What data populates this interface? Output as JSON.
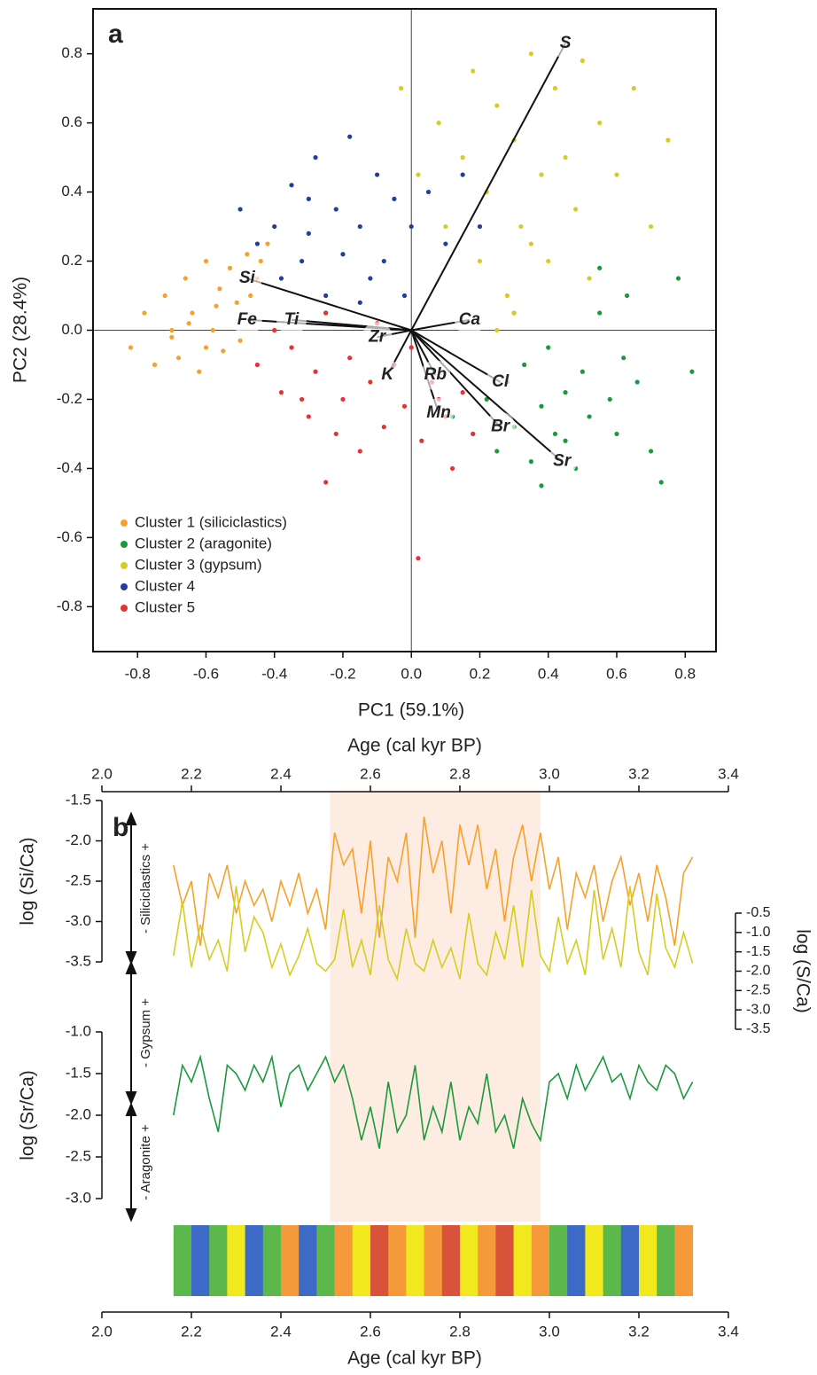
{
  "chart_data": [
    {
      "type": "scatter",
      "panel": "a",
      "xlabel": "PC1 (59.1%)",
      "ylabel": "PC2 (28.4%)",
      "xlim": [
        -0.93,
        0.89
      ],
      "ylim": [
        -0.93,
        0.93
      ],
      "xticks": [
        -0.8,
        -0.6,
        -0.4,
        -0.2,
        {
          "value": 0,
          "label": "0.0"
        },
        0.2,
        0.4,
        0.6,
        0.8
      ],
      "yticks": [
        -0.8,
        -0.6,
        -0.4,
        -0.2,
        {
          "value": 0,
          "label": "0.0"
        },
        0.2,
        0.4,
        0.6,
        0.8
      ],
      "legend": "lower-left",
      "series": [
        {
          "name": "Cluster 1 (siliciclastics)",
          "color": "#f7a12a",
          "x": [
            -0.82,
            -0.78,
            -0.75,
            -0.72,
            -0.7,
            -0.68,
            -0.66,
            -0.64,
            -0.62,
            -0.6,
            -0.58,
            -0.56,
            -0.55,
            -0.53,
            -0.51,
            -0.5,
            -0.48,
            -0.47,
            -0.45,
            -0.44,
            -0.42,
            -0.6,
            -0.65,
            -0.7,
            -0.57
          ],
          "y": [
            -0.05,
            0.05,
            -0.1,
            0.1,
            0.0,
            -0.08,
            0.15,
            0.05,
            -0.12,
            0.2,
            0.0,
            0.12,
            -0.06,
            0.18,
            0.08,
            -0.03,
            0.22,
            0.1,
            0.15,
            0.2,
            0.25,
            -0.05,
            0.02,
            -0.02,
            0.07
          ]
        },
        {
          "name": "Cluster 2 (aragonite)",
          "color": "#1a9a3a",
          "x": [
            0.12,
            0.18,
            0.22,
            0.25,
            0.28,
            0.3,
            0.33,
            0.35,
            0.38,
            0.4,
            0.42,
            0.45,
            0.48,
            0.5,
            0.52,
            0.55,
            0.58,
            0.6,
            0.63,
            0.66,
            0.7,
            0.73,
            0.78,
            0.82,
            0.45,
            0.38,
            0.3,
            0.55,
            0.62
          ],
          "y": [
            -0.25,
            -0.3,
            -0.2,
            -0.35,
            -0.15,
            -0.28,
            -0.1,
            -0.38,
            -0.22,
            -0.05,
            -0.3,
            -0.18,
            -0.4,
            -0.12,
            -0.25,
            0.05,
            -0.2,
            -0.3,
            0.1,
            -0.15,
            -0.35,
            -0.44,
            0.15,
            -0.12,
            -0.32,
            -0.45,
            0.05,
            0.18,
            -0.08
          ]
        },
        {
          "name": "Cluster 3 (gypsum)",
          "color": "#d6cd22",
          "x": [
            -0.03,
            0.02,
            0.08,
            0.1,
            0.15,
            0.18,
            0.2,
            0.22,
            0.25,
            0.28,
            0.3,
            0.32,
            0.35,
            0.38,
            0.4,
            0.42,
            0.45,
            0.48,
            0.5,
            0.52,
            0.55,
            0.6,
            0.65,
            0.7,
            0.75,
            0.3,
            0.25,
            0.35
          ],
          "y": [
            0.7,
            0.45,
            0.6,
            0.3,
            0.5,
            0.75,
            0.2,
            0.4,
            0.65,
            0.1,
            0.55,
            0.3,
            0.8,
            0.45,
            0.2,
            0.7,
            0.5,
            0.35,
            0.78,
            0.15,
            0.6,
            0.45,
            0.7,
            0.3,
            0.55,
            0.05,
            0.0,
            0.25
          ]
        },
        {
          "name": "Cluster 4",
          "color": "#1f3f99",
          "x": [
            -0.5,
            -0.45,
            -0.4,
            -0.38,
            -0.35,
            -0.32,
            -0.3,
            -0.28,
            -0.25,
            -0.22,
            -0.2,
            -0.18,
            -0.15,
            -0.12,
            -0.1,
            -0.08,
            -0.05,
            -0.02,
            0.0,
            0.05,
            0.1,
            0.15,
            0.2,
            -0.25,
            -0.15,
            -0.3
          ],
          "y": [
            0.35,
            0.25,
            0.3,
            0.15,
            0.42,
            0.2,
            0.28,
            0.5,
            0.1,
            0.35,
            0.22,
            0.56,
            0.3,
            0.15,
            0.45,
            0.2,
            0.38,
            0.1,
            0.3,
            0.4,
            0.25,
            0.45,
            0.3,
            0.05,
            0.08,
            0.38
          ]
        },
        {
          "name": "Cluster 5",
          "color": "#e8322e",
          "x": [
            -0.45,
            -0.4,
            -0.38,
            -0.35,
            -0.3,
            -0.28,
            -0.25,
            -0.22,
            -0.2,
            -0.18,
            -0.15,
            -0.12,
            -0.1,
            -0.08,
            -0.05,
            -0.02,
            0.0,
            0.03,
            0.06,
            0.1,
            0.12,
            0.15,
            0.18,
            -0.25,
            -0.32,
            0.02,
            0.08
          ],
          "y": [
            -0.1,
            0.0,
            -0.18,
            -0.05,
            -0.25,
            -0.12,
            0.05,
            -0.3,
            -0.2,
            -0.08,
            -0.35,
            -0.15,
            0.02,
            -0.28,
            -0.1,
            -0.22,
            -0.05,
            -0.32,
            -0.15,
            -0.25,
            -0.4,
            -0.18,
            -0.3,
            -0.44,
            -0.2,
            -0.66,
            -0.2
          ]
        }
      ],
      "vectors": [
        {
          "label": "S",
          "x": 0.45,
          "y": 0.83
        },
        {
          "label": "Si",
          "x": -0.48,
          "y": 0.15
        },
        {
          "label": "Fe",
          "x": -0.48,
          "y": 0.03
        },
        {
          "label": "Ti",
          "x": -0.35,
          "y": 0.03
        },
        {
          "label": "Ca",
          "x": 0.17,
          "y": 0.03
        },
        {
          "label": "Zr",
          "x": -0.1,
          "y": -0.02
        },
        {
          "label": "K",
          "x": -0.07,
          "y": -0.13
        },
        {
          "label": "Rb",
          "x": 0.07,
          "y": -0.13
        },
        {
          "label": "Cl",
          "x": 0.26,
          "y": -0.15
        },
        {
          "label": "Mn",
          "x": 0.08,
          "y": -0.24
        },
        {
          "label": "Br",
          "x": 0.26,
          "y": -0.28
        },
        {
          "label": "Sr",
          "x": 0.44,
          "y": -0.38
        }
      ]
    },
    {
      "type": "line",
      "panel": "b",
      "xlabel": "Age (cal kyr BP)",
      "xlim": [
        2.0,
        3.4
      ],
      "xticks": [
        {
          "value": 2,
          "label": "2.0"
        },
        2.2,
        2.4,
        2.6,
        2.8,
        {
          "value": 3,
          "label": "3.0"
        },
        3.2,
        3.4
      ],
      "highlight": [
        2.51,
        2.98
      ],
      "y_axes": [
        {
          "label": "log (Si/Ca)",
          "side": "left",
          "ylim": [
            -3.5,
            -1.5
          ],
          "yticks": [
            -3.5,
            {
              "value": -3,
              "label": "-3.0"
            },
            -2.5,
            {
              "value": -2,
              "label": "-2.0"
            },
            -1.5
          ]
        },
        {
          "label": "log (S/Ca)",
          "side": "right",
          "ylim": [
            -3.5,
            -0.5
          ],
          "yticks": [
            -3.5,
            {
              "value": -3,
              "label": "-3.0"
            },
            -2.5,
            {
              "value": -2,
              "label": "-2.0"
            },
            -1.5,
            {
              "value": -1,
              "label": "-1.0"
            },
            -0.5
          ]
        },
        {
          "label": "log (Sr/Ca)",
          "side": "left",
          "ylim": [
            -3.0,
            -1.0
          ],
          "yticks": [
            {
              "value": -3,
              "label": "-3.0"
            },
            -2.5,
            {
              "value": -2,
              "label": "-2.0"
            },
            -1.5,
            {
              "value": -1,
              "label": "-1.0"
            }
          ]
        }
      ],
      "annotations": [
        "- Siliciclastics +",
        "- Gypsum +",
        "- Aragonite +"
      ],
      "x": [
        2.16,
        2.18,
        2.2,
        2.22,
        2.24,
        2.26,
        2.28,
        2.3,
        2.32,
        2.34,
        2.36,
        2.38,
        2.4,
        2.42,
        2.44,
        2.46,
        2.48,
        2.5,
        2.52,
        2.54,
        2.56,
        2.58,
        2.6,
        2.62,
        2.64,
        2.66,
        2.68,
        2.7,
        2.72,
        2.74,
        2.76,
        2.78,
        2.8,
        2.82,
        2.84,
        2.86,
        2.88,
        2.9,
        2.92,
        2.94,
        2.96,
        2.98,
        3.0,
        3.02,
        3.04,
        3.06,
        3.08,
        3.1,
        3.12,
        3.14,
        3.16,
        3.18,
        3.2,
        3.22,
        3.24,
        3.26,
        3.28,
        3.3,
        3.32
      ],
      "series": [
        {
          "color": "#f7a12a",
          "axis": 0,
          "values": [
            -2.3,
            -2.8,
            -2.5,
            -3.3,
            -2.4,
            -2.7,
            -2.3,
            -2.9,
            -2.5,
            -2.8,
            -2.6,
            -3.0,
            -2.5,
            -2.8,
            -2.4,
            -2.9,
            -2.6,
            -3.1,
            -1.9,
            -2.3,
            -2.1,
            -2.9,
            -2.0,
            -3.2,
            -2.2,
            -2.5,
            -1.9,
            -3.2,
            -1.7,
            -2.4,
            -2.0,
            -2.9,
            -1.8,
            -2.3,
            -1.8,
            -2.6,
            -2.1,
            -3.0,
            -2.2,
            -1.8,
            -2.5,
            -1.9,
            -2.6,
            -2.2,
            -3.1,
            -2.4,
            -2.7,
            -2.3,
            -3.0,
            -2.5,
            -2.2,
            -2.8,
            -2.4,
            -3.0,
            -2.3,
            -2.7,
            -3.3,
            -2.4,
            -2.2
          ]
        },
        {
          "color": "#d6cd22",
          "axis": 1,
          "values": [
            -1.6,
            -0.2,
            -1.9,
            -0.8,
            -1.7,
            -1.2,
            -2.0,
            0.2,
            -1.5,
            -0.6,
            -1.0,
            -1.9,
            -1.3,
            -2.1,
            -1.6,
            -0.9,
            -1.8,
            -2.0,
            -1.7,
            -0.4,
            -1.9,
            -1.2,
            -2.1,
            -0.3,
            -1.7,
            -2.2,
            -0.9,
            -1.8,
            -2.0,
            -1.2,
            -1.9,
            -1.4,
            -2.2,
            -0.5,
            -1.8,
            -2.1,
            -1.0,
            -1.7,
            -0.3,
            -1.9,
            0.1,
            -1.6,
            -2.0,
            -0.6,
            -1.8,
            -1.2,
            -2.1,
            0.1,
            -1.7,
            -0.9,
            -1.9,
            0.2,
            -1.5,
            -2.1,
            0.0,
            -1.4,
            -1.9,
            -1.0,
            -1.8
          ]
        },
        {
          "color": "#1a9a3a",
          "axis": 2,
          "values": [
            -2.0,
            -1.4,
            -1.6,
            -1.3,
            -1.8,
            -2.2,
            -1.4,
            -1.5,
            -1.7,
            -1.4,
            -1.6,
            -1.3,
            -1.9,
            -1.5,
            -1.4,
            -1.7,
            -1.5,
            -1.3,
            -1.6,
            -1.4,
            -1.8,
            -2.3,
            -1.9,
            -2.4,
            -1.6,
            -2.2,
            -2.0,
            -1.4,
            -2.3,
            -1.9,
            -2.2,
            -1.6,
            -2.3,
            -1.9,
            -2.1,
            -1.5,
            -2.2,
            -2.0,
            -2.4,
            -1.8,
            -2.1,
            -2.3,
            -1.6,
            -1.5,
            -1.8,
            -1.4,
            -1.7,
            -1.5,
            -1.3,
            -1.6,
            -1.5,
            -1.8,
            -1.4,
            -1.6,
            -1.7,
            -1.4,
            -1.5,
            -1.8,
            -1.6
          ]
        }
      ],
      "colorbar": {
        "x": [
          2.16,
          2.2,
          2.24,
          2.28,
          2.32,
          2.36,
          2.4,
          2.44,
          2.48,
          2.52,
          2.56,
          2.6,
          2.64,
          2.68,
          2.72,
          2.76,
          2.8,
          2.84,
          2.88,
          2.92,
          2.96,
          3.0,
          3.04,
          3.08,
          3.12,
          3.16,
          3.2,
          3.24,
          3.28,
          3.32
        ],
        "colors": [
          "#5cb84a",
          "#3d6ac6",
          "#5cb84a",
          "#f2e81e",
          "#3d6ac6",
          "#5cb84a",
          "#f49a3a",
          "#3d6ac6",
          "#5cb84a",
          "#f49a3a",
          "#f2e81e",
          "#d9533a",
          "#f49a3a",
          "#f2e81e",
          "#f49a3a",
          "#d9533a",
          "#f2e81e",
          "#f49a3a",
          "#d9533a",
          "#f2e81e",
          "#f49a3a",
          "#5cb84a",
          "#3d6ac6",
          "#f2e81e",
          "#5cb84a",
          "#3d6ac6",
          "#f2e81e",
          "#5cb84a",
          "#f49a3a"
        ]
      }
    }
  ]
}
